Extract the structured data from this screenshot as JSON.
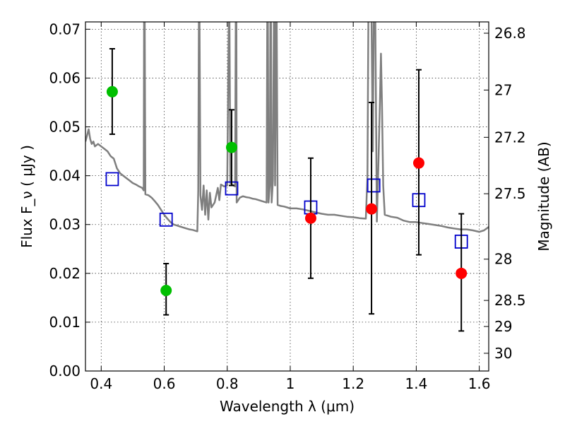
{
  "chart_data": {
    "type": "scatter",
    "xlabel": "Wavelength  λ (μm)",
    "ylabel": "Flux  F_ν  ( μJy )",
    "y2label": "Magnitude (AB)",
    "xlim": [
      0.35,
      1.63
    ],
    "ylim": [
      0.0,
      0.0715
    ],
    "x_ticks": [
      "0.4",
      "0.6",
      "0.8",
      "1",
      "1.2",
      "1.4",
      "1.6"
    ],
    "y_ticks": [
      "0.00",
      "0.01",
      "0.02",
      "0.03",
      "0.04",
      "0.05",
      "0.06",
      "0.07"
    ],
    "y2_ticks": [
      "26.8",
      "27",
      "27.2",
      "27.5",
      "28",
      "28.5",
      "29",
      "30"
    ],
    "grid": true,
    "colors": {
      "spectrum": "#7f7f7f",
      "observed_optical": "#00bf00",
      "observed_nir": "#ff0000",
      "model": "#0000cc",
      "errorbar": "#000000"
    },
    "spectrum": [
      [
        0.35,
        0.047
      ],
      [
        0.36,
        0.0495
      ],
      [
        0.365,
        0.0475
      ],
      [
        0.37,
        0.0465
      ],
      [
        0.375,
        0.047
      ],
      [
        0.38,
        0.046
      ],
      [
        0.39,
        0.0465
      ],
      [
        0.4,
        0.046
      ],
      [
        0.41,
        0.0455
      ],
      [
        0.42,
        0.045
      ],
      [
        0.43,
        0.044
      ],
      [
        0.44,
        0.0435
      ],
      [
        0.45,
        0.0415
      ],
      [
        0.46,
        0.0405
      ],
      [
        0.47,
        0.04
      ],
      [
        0.48,
        0.0395
      ],
      [
        0.49,
        0.039
      ],
      [
        0.5,
        0.0385
      ],
      [
        0.51,
        0.0382
      ],
      [
        0.52,
        0.0378
      ],
      [
        0.53,
        0.0375
      ],
      [
        0.535,
        0.037
      ],
      [
        0.536,
        0.072
      ],
      [
        0.538,
        0.072
      ],
      [
        0.54,
        0.0362
      ],
      [
        0.55,
        0.036
      ],
      [
        0.56,
        0.0355
      ],
      [
        0.57,
        0.0348
      ],
      [
        0.58,
        0.034
      ],
      [
        0.59,
        0.033
      ],
      [
        0.6,
        0.032
      ],
      [
        0.61,
        0.0312
      ],
      [
        0.62,
        0.0305
      ],
      [
        0.63,
        0.03
      ],
      [
        0.64,
        0.0298
      ],
      [
        0.65,
        0.0296
      ],
      [
        0.66,
        0.0294
      ],
      [
        0.67,
        0.0292
      ],
      [
        0.68,
        0.029
      ],
      [
        0.69,
        0.0289
      ],
      [
        0.7,
        0.0287
      ],
      [
        0.705,
        0.0286
      ],
      [
        0.708,
        0.037
      ],
      [
        0.71,
        0.072
      ],
      [
        0.712,
        0.072
      ],
      [
        0.715,
        0.036
      ],
      [
        0.72,
        0.033
      ],
      [
        0.725,
        0.038
      ],
      [
        0.73,
        0.032
      ],
      [
        0.735,
        0.037
      ],
      [
        0.74,
        0.031
      ],
      [
        0.745,
        0.0365
      ],
      [
        0.75,
        0.0335
      ],
      [
        0.76,
        0.0345
      ],
      [
        0.77,
        0.0375
      ],
      [
        0.775,
        0.035
      ],
      [
        0.78,
        0.0382
      ],
      [
        0.79,
        0.0378
      ],
      [
        0.8,
        0.038
      ],
      [
        0.805,
        0.072
      ],
      [
        0.807,
        0.072
      ],
      [
        0.81,
        0.0385
      ],
      [
        0.815,
        0.0382
      ],
      [
        0.82,
        0.038
      ],
      [
        0.825,
        0.0378
      ],
      [
        0.827,
        0.072
      ],
      [
        0.829,
        0.072
      ],
      [
        0.83,
        0.0345
      ],
      [
        0.84,
        0.0355
      ],
      [
        0.85,
        0.0358
      ],
      [
        0.86,
        0.0356
      ],
      [
        0.87,
        0.0355
      ],
      [
        0.88,
        0.0353
      ],
      [
        0.89,
        0.0352
      ],
      [
        0.9,
        0.035
      ],
      [
        0.91,
        0.0348
      ],
      [
        0.92,
        0.0346
      ],
      [
        0.925,
        0.0345
      ],
      [
        0.927,
        0.072
      ],
      [
        0.929,
        0.072
      ],
      [
        0.931,
        0.0345
      ],
      [
        0.935,
        0.038
      ],
      [
        0.937,
        0.072
      ],
      [
        0.939,
        0.072
      ],
      [
        0.941,
        0.0345
      ],
      [
        0.945,
        0.039
      ],
      [
        0.948,
        0.072
      ],
      [
        0.95,
        0.072
      ],
      [
        0.952,
        0.038
      ],
      [
        0.955,
        0.072
      ],
      [
        0.957,
        0.072
      ],
      [
        0.96,
        0.034
      ],
      [
        0.97,
        0.0338
      ],
      [
        0.98,
        0.0337
      ],
      [
        0.99,
        0.0335
      ],
      [
        1.0,
        0.0333
      ],
      [
        1.02,
        0.0333
      ],
      [
        1.04,
        0.0331
      ],
      [
        1.06,
        0.0328
      ],
      [
        1.08,
        0.0325
      ],
      [
        1.1,
        0.0322
      ],
      [
        1.12,
        0.032
      ],
      [
        1.14,
        0.032
      ],
      [
        1.16,
        0.0318
      ],
      [
        1.18,
        0.0316
      ],
      [
        1.2,
        0.0315
      ],
      [
        1.22,
        0.0313
      ],
      [
        1.24,
        0.0312
      ],
      [
        1.245,
        0.04
      ],
      [
        1.248,
        0.072
      ],
      [
        1.258,
        0.072
      ],
      [
        1.262,
        0.045
      ],
      [
        1.265,
        0.072
      ],
      [
        1.27,
        0.072
      ],
      [
        1.275,
        0.0306
      ],
      [
        1.28,
        0.043
      ],
      [
        1.285,
        0.056
      ],
      [
        1.288,
        0.065
      ],
      [
        1.291,
        0.055
      ],
      [
        1.295,
        0.038
      ],
      [
        1.3,
        0.032
      ],
      [
        1.32,
        0.0316
      ],
      [
        1.34,
        0.0314
      ],
      [
        1.36,
        0.0308
      ],
      [
        1.38,
        0.0305
      ],
      [
        1.4,
        0.0305
      ],
      [
        1.42,
        0.0303
      ],
      [
        1.44,
        0.0301
      ],
      [
        1.46,
        0.0299
      ],
      [
        1.48,
        0.0297
      ],
      [
        1.5,
        0.0294
      ],
      [
        1.52,
        0.0292
      ],
      [
        1.54,
        0.029
      ],
      [
        1.56,
        0.029
      ],
      [
        1.58,
        0.0288
      ],
      [
        1.6,
        0.0285
      ],
      [
        1.615,
        0.0288
      ],
      [
        1.63,
        0.0295
      ]
    ],
    "observed": [
      {
        "x": 0.435,
        "y": 0.0572,
        "err_lo": 0.0485,
        "err_hi": 0.066,
        "band": "optical"
      },
      {
        "x": 0.606,
        "y": 0.0165,
        "err_lo": 0.0115,
        "err_hi": 0.022,
        "band": "optical"
      },
      {
        "x": 0.814,
        "y": 0.0458,
        "err_lo": 0.038,
        "err_hi": 0.0535,
        "band": "optical"
      },
      {
        "x": 1.065,
        "y": 0.0313,
        "err_lo": 0.019,
        "err_hi": 0.0436,
        "band": "nir"
      },
      {
        "x": 1.258,
        "y": 0.0332,
        "err_lo": 0.0117,
        "err_hi": 0.055,
        "band": "nir"
      },
      {
        "x": 1.408,
        "y": 0.0426,
        "err_lo": 0.0238,
        "err_hi": 0.0617,
        "band": "nir"
      },
      {
        "x": 1.543,
        "y": 0.02,
        "err_lo": 0.0082,
        "err_hi": 0.0322,
        "band": "nir"
      }
    ],
    "model": [
      {
        "x": 0.435,
        "y": 0.0393
      },
      {
        "x": 0.606,
        "y": 0.031
      },
      {
        "x": 0.814,
        "y": 0.0374
      },
      {
        "x": 1.065,
        "y": 0.0335
      },
      {
        "x": 1.265,
        "y": 0.038
      },
      {
        "x": 1.408,
        "y": 0.035
      },
      {
        "x": 1.543,
        "y": 0.0265
      }
    ]
  }
}
